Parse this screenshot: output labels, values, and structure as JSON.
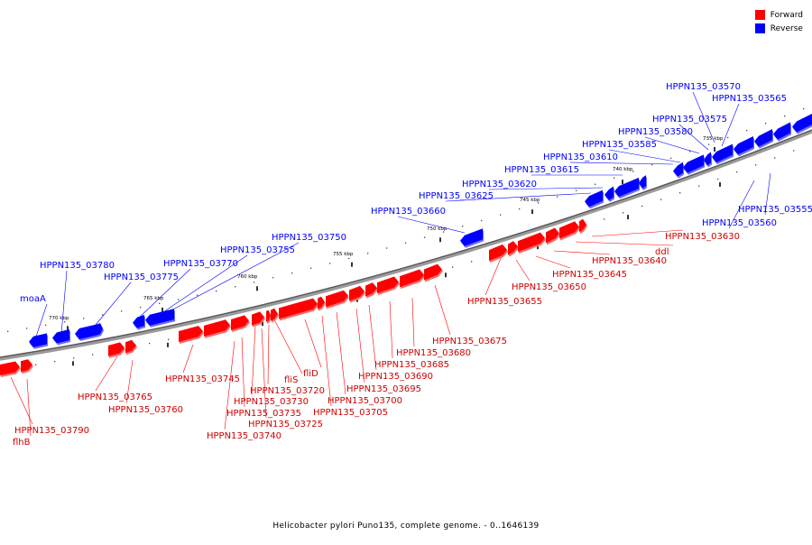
{
  "legend": {
    "forward": {
      "label": "Forward",
      "color": "#ff0000"
    },
    "reverse": {
      "label": "Reverse",
      "color": "#0000ff"
    }
  },
  "caption": "Helicobacter pylori Puno135, complete genome. - 0..1646139",
  "ticks": [
    "770 kbp",
    "765 kbp",
    "760 kbp",
    "755 kbp",
    "750 kbp",
    "745 kbp",
    "740 kbp",
    "735 kbp"
  ],
  "labels": {
    "reverse": [
      "moaA",
      "HPPN135_03780",
      "HPPN135_03775",
      "HPPN135_03770",
      "HPPN135_03755",
      "HPPN135_03750",
      "HPPN135_03660",
      "HPPN135_03625",
      "HPPN135_03620",
      "HPPN135_03615",
      "HPPN135_03610",
      "HPPN135_03585",
      "HPPN135_03580",
      "HPPN135_03575",
      "HPPN135_03570",
      "HPPN135_03565",
      "HPPN135_03560",
      "HPPN135_03555"
    ],
    "forward": [
      "HPPN135_03790",
      "flhB",
      "HPPN135_03765",
      "HPPN135_03760",
      "HPPN135_03745",
      "HPPN135_03740",
      "HPPN135_03735",
      "HPPN135_03730",
      "HPPN135_03725",
      "HPPN135_03720",
      "fliS",
      "fliD",
      "HPPN135_03705",
      "HPPN135_03700",
      "HPPN135_03695",
      "HPPN135_03690",
      "HPPN135_03685",
      "HPPN135_03680",
      "HPPN135_03675",
      "HPPN135_03655",
      "HPPN135_03650",
      "HPPN135_03645",
      "HPPN135_03640",
      "ddl",
      "HPPN135_03630"
    ]
  }
}
